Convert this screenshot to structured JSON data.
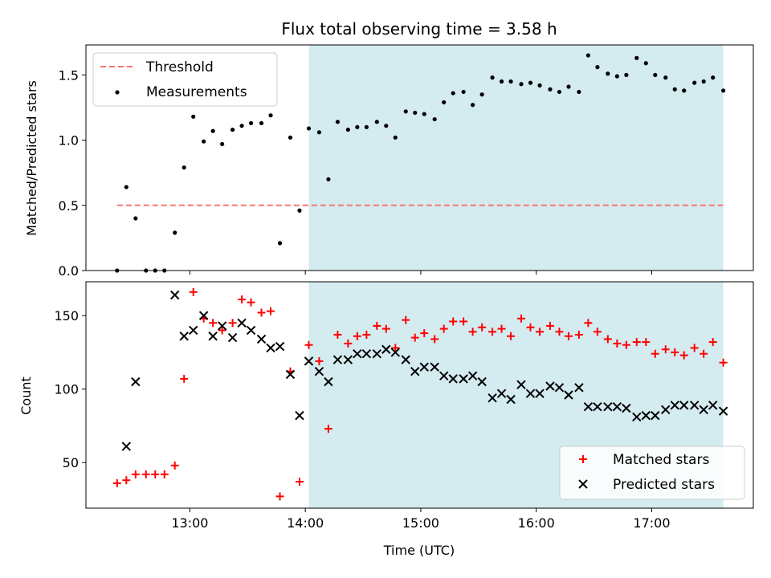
{
  "chart_data": [
    {
      "type": "scatter",
      "title": "Flux total observing time = 3.58 h",
      "ylabel": "Matched/Predicted stars",
      "xlim": [
        12.1,
        17.88
      ],
      "ylim": [
        0,
        1.73
      ],
      "yticks": [
        0.0,
        0.5,
        1.0,
        1.5
      ],
      "ytick_labels": [
        "0.0",
        "0.5",
        "1.0",
        "1.5"
      ],
      "xticks": [
        13,
        14,
        15,
        16,
        17
      ],
      "shaded_span": {
        "x_start": 14.03,
        "x_end": 17.62,
        "color": "#d4ebf0"
      },
      "threshold": {
        "y": 0.5,
        "x_start": 12.37,
        "x_end": 17.62,
        "color": "#f87575"
      },
      "legend": {
        "position": "top-left",
        "entries": [
          "Threshold",
          "Measurements"
        ]
      },
      "series": [
        {
          "name": "Measurements",
          "marker": "dot",
          "color": "#000000",
          "x": [
            12.37,
            12.45,
            12.53,
            12.62,
            12.7,
            12.78,
            12.87,
            12.95,
            13.03,
            13.12,
            13.2,
            13.28,
            13.37,
            13.45,
            13.53,
            13.62,
            13.7,
            13.78,
            13.87,
            13.95,
            14.03,
            14.12,
            14.2,
            14.28,
            14.37,
            14.45,
            14.53,
            14.62,
            14.7,
            14.78,
            14.87,
            14.95,
            15.03,
            15.12,
            15.2,
            15.28,
            15.37,
            15.45,
            15.53,
            15.62,
            15.7,
            15.78,
            15.87,
            15.95,
            16.03,
            16.12,
            16.2,
            16.28,
            16.37,
            16.45,
            16.53,
            16.62,
            16.7,
            16.78,
            16.87,
            16.95,
            17.03,
            17.12,
            17.2,
            17.28,
            17.37,
            17.45,
            17.53,
            17.62
          ],
          "y": [
            0.0,
            0.64,
            0.4,
            0.0,
            0.0,
            0.0,
            0.29,
            0.79,
            1.18,
            0.99,
            1.07,
            0.97,
            1.08,
            1.11,
            1.13,
            1.13,
            1.19,
            0.21,
            1.02,
            0.46,
            1.09,
            1.06,
            0.7,
            1.14,
            1.08,
            1.1,
            1.1,
            1.14,
            1.11,
            1.02,
            1.22,
            1.21,
            1.2,
            1.16,
            1.29,
            1.36,
            1.37,
            1.27,
            1.35,
            1.48,
            1.45,
            1.45,
            1.43,
            1.44,
            1.42,
            1.39,
            1.37,
            1.41,
            1.37,
            1.65,
            1.56,
            1.51,
            1.49,
            1.5,
            1.63,
            1.59,
            1.5,
            1.48,
            1.39,
            1.38,
            1.44,
            1.45,
            1.48,
            1.38
          ]
        }
      ]
    },
    {
      "type": "scatter",
      "xlabel": "Time (UTC)",
      "ylabel": "Count",
      "xlim": [
        12.1,
        17.88
      ],
      "ylim": [
        19,
        173
      ],
      "yticks": [
        50,
        100,
        150
      ],
      "ytick_labels": [
        "50",
        "100",
        "150"
      ],
      "xticks": [
        13,
        14,
        15,
        16,
        17
      ],
      "xtick_labels": [
        "13:00",
        "14:00",
        "15:00",
        "16:00",
        "17:00"
      ],
      "shaded_span": {
        "x_start": 14.03,
        "x_end": 17.62,
        "color": "#d4ebf0"
      },
      "legend": {
        "position": "bottom-right",
        "entries": [
          "Matched stars",
          "Predicted stars"
        ]
      },
      "series": [
        {
          "name": "Matched stars",
          "marker": "plus",
          "color": "#ff0000",
          "x": [
            12.37,
            12.45,
            12.53,
            12.62,
            12.7,
            12.78,
            12.87,
            12.95,
            13.03,
            13.12,
            13.2,
            13.28,
            13.37,
            13.45,
            13.53,
            13.62,
            13.7,
            13.78,
            13.87,
            13.95,
            14.03,
            14.12,
            14.2,
            14.28,
            14.37,
            14.45,
            14.53,
            14.62,
            14.7,
            14.78,
            14.87,
            14.95,
            15.03,
            15.12,
            15.2,
            15.28,
            15.37,
            15.45,
            15.53,
            15.62,
            15.7,
            15.78,
            15.87,
            15.95,
            16.03,
            16.12,
            16.2,
            16.28,
            16.37,
            16.45,
            16.53,
            16.62,
            16.7,
            16.78,
            16.87,
            16.95,
            17.03,
            17.12,
            17.2,
            17.28,
            17.37,
            17.45,
            17.53,
            17.62
          ],
          "y": [
            36,
            38,
            42,
            42,
            42,
            42,
            48,
            107,
            166,
            148,
            145,
            140,
            145,
            161,
            159,
            152,
            153,
            27,
            112,
            37,
            130,
            119,
            73,
            137,
            131,
            136,
            137,
            143,
            141,
            128,
            147,
            135,
            138,
            134,
            141,
            146,
            146,
            139,
            142,
            139,
            141,
            136,
            148,
            142,
            139,
            143,
            139,
            136,
            137,
            145,
            139,
            134,
            131,
            130,
            132,
            132,
            124,
            127,
            125,
            123,
            128,
            124,
            132,
            118
          ]
        },
        {
          "name": "Predicted stars",
          "marker": "x",
          "color": "#000000",
          "x": [
            12.45,
            12.53,
            12.87,
            12.95,
            13.03,
            13.12,
            13.2,
            13.28,
            13.37,
            13.45,
            13.53,
            13.62,
            13.7,
            13.78,
            13.87,
            13.95,
            14.03,
            14.12,
            14.2,
            14.28,
            14.37,
            14.45,
            14.53,
            14.62,
            14.7,
            14.78,
            14.87,
            14.95,
            15.03,
            15.12,
            15.2,
            15.28,
            15.37,
            15.45,
            15.53,
            15.62,
            15.7,
            15.78,
            15.87,
            15.95,
            16.03,
            16.12,
            16.2,
            16.28,
            16.37,
            16.45,
            16.53,
            16.62,
            16.7,
            16.78,
            16.87,
            16.95,
            17.03,
            17.12,
            17.2,
            17.28,
            17.37,
            17.45,
            17.53,
            17.62
          ],
          "y": [
            61,
            105,
            164,
            136,
            140,
            150,
            136,
            143,
            135,
            145,
            140,
            134,
            128,
            129,
            110,
            82,
            119,
            112,
            105,
            120,
            120,
            124,
            124,
            124,
            127,
            125,
            120,
            112,
            115,
            115,
            109,
            107,
            107,
            109,
            105,
            94,
            97,
            93,
            103,
            97,
            97,
            102,
            101,
            96,
            101,
            88,
            88,
            88,
            88,
            87,
            81,
            82,
            82,
            86,
            89,
            89,
            89,
            86,
            89,
            85
          ]
        }
      ]
    }
  ]
}
